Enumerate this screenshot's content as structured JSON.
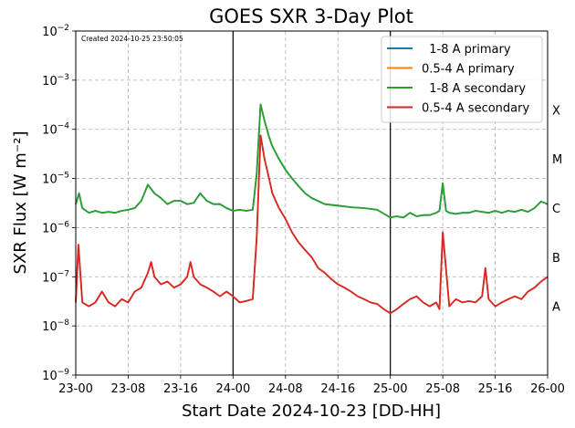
{
  "chart_data": {
    "type": "line",
    "title": "GOES SXR 3-Day Plot",
    "xlabel": "Start Date 2024-10-23 [DD-HH]",
    "ylabel": "SXR Flux [W m⁻²]",
    "annotation": "Created 2024-10-25 23:50:05",
    "x_unit": "hours since 2024-10-23 00:00",
    "xlim": [
      0,
      72
    ],
    "ylim": [
      1e-09,
      0.01
    ],
    "yscale": "log",
    "grid": true,
    "legend_position": "top-right",
    "x_ticks": [
      {
        "x": 0,
        "label": "23-00"
      },
      {
        "x": 8,
        "label": "23-08"
      },
      {
        "x": 16,
        "label": "23-16"
      },
      {
        "x": 24,
        "label": "24-00"
      },
      {
        "x": 32,
        "label": "24-08"
      },
      {
        "x": 40,
        "label": "24-16"
      },
      {
        "x": 48,
        "label": "25-00"
      },
      {
        "x": 56,
        "label": "25-08"
      },
      {
        "x": 64,
        "label": "25-16"
      },
      {
        "x": 72,
        "label": "26-00"
      }
    ],
    "y_ticks": [
      {
        "y": 1e-09,
        "base": "10",
        "exp": "−9"
      },
      {
        "y": 1e-08,
        "base": "10",
        "exp": "−8"
      },
      {
        "y": 1e-07,
        "base": "10",
        "exp": "−7"
      },
      {
        "y": 1e-06,
        "base": "10",
        "exp": "−6"
      },
      {
        "y": 1e-05,
        "base": "10",
        "exp": "−5"
      },
      {
        "y": 0.0001,
        "base": "10",
        "exp": "−4"
      },
      {
        "y": 0.001,
        "base": "10",
        "exp": "−3"
      },
      {
        "y": 0.01,
        "base": "10",
        "exp": "−2"
      }
    ],
    "vertical_lines": [
      24,
      48
    ],
    "flare_classes": [
      {
        "label": "A",
        "y": 2.5e-08
      },
      {
        "label": "B",
        "y": 2.5e-07
      },
      {
        "label": "C",
        "y": 2.5e-06
      },
      {
        "label": "M",
        "y": 2.5e-05
      },
      {
        "label": "X",
        "y": 0.00025
      }
    ],
    "series": [
      {
        "name": "  1-8 A primary",
        "color": "#1f77b4",
        "x": [
          0,
          0.5,
          1,
          2,
          3,
          4,
          5,
          6,
          7,
          8,
          9,
          10,
          11,
          12,
          13,
          14,
          15,
          16,
          17,
          18,
          19,
          20,
          21,
          22,
          23,
          24,
          25,
          26,
          27,
          27.6,
          28.2,
          28.8,
          29.5,
          30,
          31,
          32,
          33,
          34,
          35,
          36,
          38,
          40,
          42,
          44,
          46,
          48,
          49,
          50,
          51,
          52,
          53,
          54,
          55,
          55.5,
          56,
          56.5,
          57,
          58,
          59,
          60,
          61,
          62,
          63,
          64,
          65,
          66,
          67,
          68,
          69,
          70,
          71,
          72
        ],
        "values": [
          3e-06,
          5e-06,
          2.5e-06,
          2e-06,
          2.2e-06,
          2e-06,
          2.1e-06,
          2e-06,
          2.2e-06,
          2.3e-06,
          2.5e-06,
          3.5e-06,
          7.5e-06,
          5e-06,
          4e-06,
          3e-06,
          3.5e-06,
          3.5e-06,
          3e-06,
          3.2e-06,
          5e-06,
          3.5e-06,
          3e-06,
          3e-06,
          2.5e-06,
          2.2e-06,
          2.3e-06,
          2.2e-06,
          2.3e-06,
          1.2e-05,
          0.00032,
          0.00015,
          7e-05,
          4.5e-05,
          2.5e-05,
          1.5e-05,
          1e-05,
          7e-06,
          5e-06,
          4e-06,
          3e-06,
          2.8e-06,
          2.6e-06,
          2.5e-06,
          2.3e-06,
          1.6e-06,
          1.7e-06,
          1.6e-06,
          2e-06,
          1.7e-06,
          1.8e-06,
          1.8e-06,
          2e-06,
          2.2e-06,
          8e-06,
          2.2e-06,
          2e-06,
          1.9e-06,
          2e-06,
          2e-06,
          2.2e-06,
          2.1e-06,
          2e-06,
          2.2e-06,
          2e-06,
          2.2e-06,
          2.1e-06,
          2.3e-06,
          2.1e-06,
          2.5e-06,
          3.4e-06,
          3e-06
        ]
      },
      {
        "name": "0.5-4 A primary",
        "color": "#ff7f0e",
        "x": [
          0,
          0.4,
          1,
          2,
          3,
          4,
          5,
          6,
          7,
          8,
          9,
          10,
          11,
          11.5,
          12,
          13,
          14,
          15,
          16,
          17,
          17.5,
          18,
          19,
          20,
          21,
          22,
          23,
          24,
          25,
          26,
          27,
          27.6,
          28.2,
          28.8,
          29.5,
          30,
          31,
          32,
          33,
          34,
          35,
          36,
          37,
          38,
          39,
          40,
          41,
          42,
          43,
          44,
          45,
          46,
          47,
          48,
          49,
          50,
          51,
          52,
          53,
          54,
          55,
          55.5,
          56,
          57,
          58,
          59,
          60,
          61,
          62,
          62.5,
          63,
          64,
          65,
          66,
          67,
          68,
          69,
          70,
          71,
          72
        ],
        "values": [
          3e-08,
          4.5e-07,
          3e-08,
          2.5e-08,
          3e-08,
          5e-08,
          3e-08,
          2.5e-08,
          3.5e-08,
          3e-08,
          5e-08,
          6e-08,
          1.2e-07,
          2e-07,
          1e-07,
          7e-08,
          8e-08,
          6e-08,
          7e-08,
          1e-07,
          2e-07,
          1e-07,
          7e-08,
          6e-08,
          5e-08,
          4e-08,
          5e-08,
          4e-08,
          3e-08,
          3.2e-08,
          3.5e-08,
          6e-07,
          7.5e-05,
          2.5e-05,
          1e-05,
          5e-06,
          2.5e-06,
          1.5e-06,
          8e-07,
          5e-07,
          3.5e-07,
          2.5e-07,
          1.5e-07,
          1.2e-07,
          9e-08,
          7e-08,
          6e-08,
          5e-08,
          4e-08,
          3.5e-08,
          3e-08,
          2.8e-08,
          2.2e-08,
          1.8e-08,
          2.2e-08,
          2.8e-08,
          3.5e-08,
          4e-08,
          3e-08,
          2.5e-08,
          3e-08,
          2.2e-08,
          8e-07,
          2.5e-08,
          3.5e-08,
          3e-08,
          3.2e-08,
          3e-08,
          4e-08,
          1.5e-07,
          3.5e-08,
          2.5e-08,
          3e-08,
          3.5e-08,
          4e-08,
          3.5e-08,
          5e-08,
          6e-08,
          8e-08,
          1e-07
        ]
      },
      {
        "name": "  1-8 A secondary",
        "color": "#2ca02c",
        "x": [
          0,
          0.5,
          1,
          2,
          3,
          4,
          5,
          6,
          7,
          8,
          9,
          10,
          11,
          12,
          13,
          14,
          15,
          16,
          17,
          18,
          19,
          20,
          21,
          22,
          23,
          24,
          25,
          26,
          27,
          27.6,
          28.2,
          28.8,
          29.5,
          30,
          31,
          32,
          33,
          34,
          35,
          36,
          38,
          40,
          42,
          44,
          46,
          48,
          49,
          50,
          51,
          52,
          53,
          54,
          55,
          55.5,
          56,
          56.5,
          57,
          58,
          59,
          60,
          61,
          62,
          63,
          64,
          65,
          66,
          67,
          68,
          69,
          70,
          71,
          72
        ],
        "values": [
          3e-06,
          5e-06,
          2.5e-06,
          2e-06,
          2.2e-06,
          2e-06,
          2.1e-06,
          2e-06,
          2.2e-06,
          2.3e-06,
          2.5e-06,
          3.5e-06,
          7.5e-06,
          5e-06,
          4e-06,
          3e-06,
          3.5e-06,
          3.5e-06,
          3e-06,
          3.2e-06,
          5e-06,
          3.5e-06,
          3e-06,
          3e-06,
          2.5e-06,
          2.2e-06,
          2.3e-06,
          2.2e-06,
          2.3e-06,
          1.2e-05,
          0.00032,
          0.00015,
          7e-05,
          4.5e-05,
          2.5e-05,
          1.5e-05,
          1e-05,
          7e-06,
          5e-06,
          4e-06,
          3e-06,
          2.8e-06,
          2.6e-06,
          2.5e-06,
          2.3e-06,
          1.6e-06,
          1.7e-06,
          1.6e-06,
          2e-06,
          1.7e-06,
          1.8e-06,
          1.8e-06,
          2e-06,
          2.2e-06,
          8e-06,
          2.2e-06,
          2e-06,
          1.9e-06,
          2e-06,
          2e-06,
          2.2e-06,
          2.1e-06,
          2e-06,
          2.2e-06,
          2e-06,
          2.2e-06,
          2.1e-06,
          2.3e-06,
          2.1e-06,
          2.5e-06,
          3.4e-06,
          3e-06
        ]
      },
      {
        "name": "0.5-4 A secondary",
        "color": "#d62728",
        "x": [
          0,
          0.4,
          1,
          2,
          3,
          4,
          5,
          6,
          7,
          8,
          9,
          10,
          11,
          11.5,
          12,
          13,
          14,
          15,
          16,
          17,
          17.5,
          18,
          19,
          20,
          21,
          22,
          23,
          24,
          25,
          26,
          27,
          27.6,
          28.2,
          28.8,
          29.5,
          30,
          31,
          32,
          33,
          34,
          35,
          36,
          37,
          38,
          39,
          40,
          41,
          42,
          43,
          44,
          45,
          46,
          47,
          48,
          49,
          50,
          51,
          52,
          53,
          54,
          55,
          55.5,
          56,
          57,
          58,
          59,
          60,
          61,
          62,
          62.5,
          63,
          64,
          65,
          66,
          67,
          68,
          69,
          70,
          71,
          72
        ],
        "values": [
          3e-08,
          4.5e-07,
          3e-08,
          2.5e-08,
          3e-08,
          5e-08,
          3e-08,
          2.5e-08,
          3.5e-08,
          3e-08,
          5e-08,
          6e-08,
          1.2e-07,
          2e-07,
          1e-07,
          7e-08,
          8e-08,
          6e-08,
          7e-08,
          1e-07,
          2e-07,
          1e-07,
          7e-08,
          6e-08,
          5e-08,
          4e-08,
          5e-08,
          4e-08,
          3e-08,
          3.2e-08,
          3.5e-08,
          6e-07,
          7.5e-05,
          2.5e-05,
          1e-05,
          5e-06,
          2.5e-06,
          1.5e-06,
          8e-07,
          5e-07,
          3.5e-07,
          2.5e-07,
          1.5e-07,
          1.2e-07,
          9e-08,
          7e-08,
          6e-08,
          5e-08,
          4e-08,
          3.5e-08,
          3e-08,
          2.8e-08,
          2.2e-08,
          1.8e-08,
          2.2e-08,
          2.8e-08,
          3.5e-08,
          4e-08,
          3e-08,
          2.5e-08,
          3e-08,
          2.2e-08,
          8e-07,
          2.5e-08,
          3.5e-08,
          3e-08,
          3.2e-08,
          3e-08,
          4e-08,
          1.5e-07,
          3.5e-08,
          2.5e-08,
          3e-08,
          3.5e-08,
          4e-08,
          3.5e-08,
          5e-08,
          6e-08,
          8e-08,
          1e-07
        ]
      }
    ]
  }
}
